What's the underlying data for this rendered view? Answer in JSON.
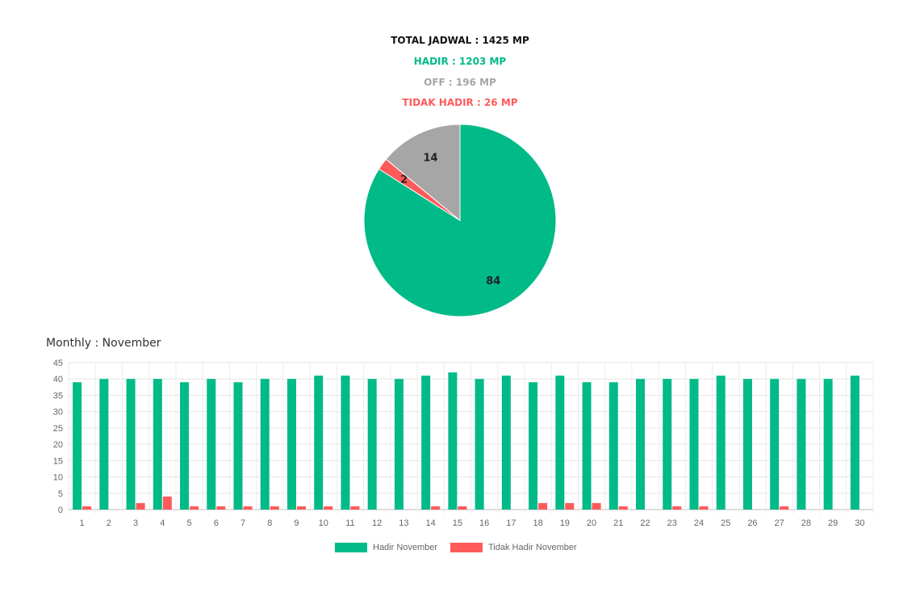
{
  "summary": {
    "total": "TOTAL JADWAL : 1425 MP",
    "hadir": "HADIR : 1203 MP",
    "off": "OFF : 196 MP",
    "tidak_hadir": "TIDAK HADIR : 26 MP"
  },
  "colors": {
    "hadir": "#00BA88",
    "off": "#A6A6A6",
    "tidak_hadir": "#FF5A5A",
    "text": "#111111"
  },
  "monthly_title": "Monthly : November",
  "chart_data": [
    {
      "type": "pie",
      "slices": [
        {
          "label": "HADIR",
          "value": 84,
          "color": "#00BA88"
        },
        {
          "label": "TIDAK HADIR",
          "value": 2,
          "color": "#FF5A5A"
        },
        {
          "label": "OFF",
          "value": 14,
          "color": "#A6A6A6"
        }
      ]
    },
    {
      "type": "bar",
      "categories": [
        "1",
        "2",
        "3",
        "4",
        "5",
        "6",
        "7",
        "8",
        "9",
        "10",
        "11",
        "12",
        "13",
        "14",
        "15",
        "16",
        "17",
        "18",
        "19",
        "20",
        "21",
        "22",
        "23",
        "24",
        "25",
        "26",
        "27",
        "28",
        "29",
        "30"
      ],
      "series": [
        {
          "name": "Hadir November",
          "color": "#00BA88",
          "values": [
            39,
            40,
            40,
            40,
            39,
            40,
            39,
            40,
            40,
            41,
            41,
            40,
            40,
            41,
            42,
            40,
            41,
            39,
            41,
            39,
            39,
            40,
            40,
            40,
            41,
            40,
            40,
            40,
            40,
            41
          ]
        },
        {
          "name": "Tidak Hadir November",
          "color": "#FF5A5A",
          "values": [
            1,
            0,
            2,
            4,
            1,
            1,
            1,
            1,
            1,
            1,
            1,
            0,
            0,
            1,
            1,
            0,
            0,
            2,
            2,
            2,
            1,
            0,
            1,
            1,
            0,
            0,
            1,
            0,
            0,
            0
          ]
        }
      ],
      "yticks": [
        0,
        5,
        10,
        15,
        20,
        25,
        30,
        35,
        40,
        45
      ],
      "ylim": [
        0,
        45
      ],
      "grid": true,
      "legend": "bottom"
    }
  ]
}
